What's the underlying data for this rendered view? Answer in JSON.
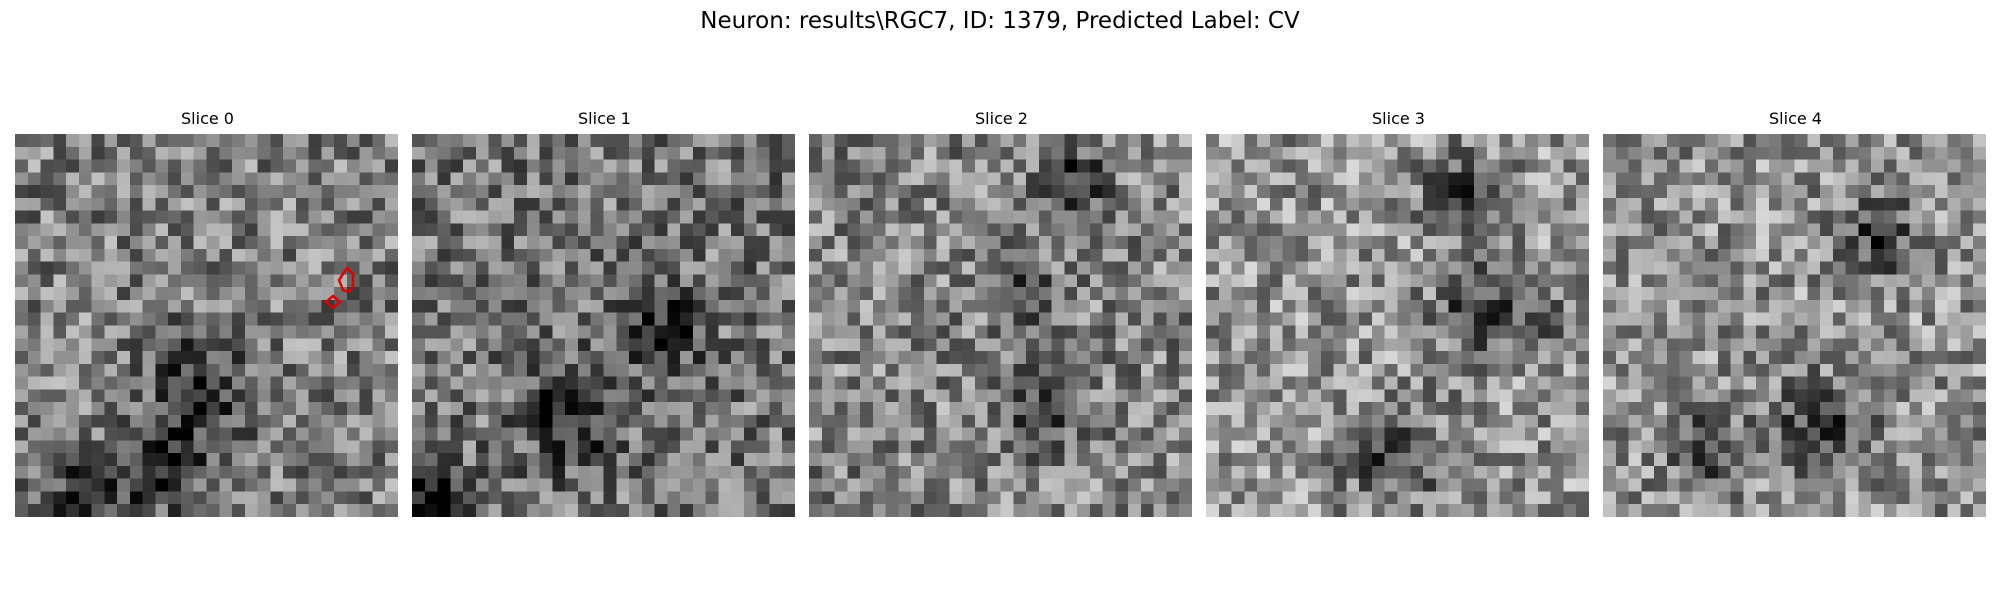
{
  "figure": {
    "title": "Neuron: results\\RGC7, ID: 1379, Predicted Label: CV"
  },
  "slices": [
    {
      "title": "Slice 0",
      "seed": 11,
      "dark_spots": [
        [
          0.47,
          0.65,
          0.14
        ],
        [
          0.38,
          0.85,
          0.1
        ],
        [
          0.18,
          0.92,
          0.12
        ]
      ],
      "bright": 0.5,
      "contour": true
    },
    {
      "title": "Slice 1",
      "seed": 23,
      "dark_spots": [
        [
          0.63,
          0.5,
          0.1
        ],
        [
          0.4,
          0.72,
          0.12
        ],
        [
          0.05,
          0.95,
          0.1
        ]
      ],
      "bright": 0.46,
      "contour": false
    },
    {
      "title": "Slice 2",
      "seed": 37,
      "dark_spots": [
        [
          0.68,
          0.1,
          0.08
        ],
        [
          0.55,
          0.4,
          0.08
        ],
        [
          0.6,
          0.7,
          0.1
        ]
      ],
      "bright": 0.52,
      "contour": false
    },
    {
      "title": "Slice 3",
      "seed": 41,
      "dark_spots": [
        [
          0.65,
          0.15,
          0.1
        ],
        [
          0.7,
          0.45,
          0.12
        ],
        [
          0.48,
          0.82,
          0.12
        ],
        [
          0.88,
          0.48,
          0.06
        ]
      ],
      "bright": 0.58,
      "contour": false
    },
    {
      "title": "Slice 4",
      "seed": 53,
      "dark_spots": [
        [
          0.7,
          0.25,
          0.1
        ],
        [
          0.55,
          0.75,
          0.12
        ],
        [
          0.25,
          0.8,
          0.1
        ]
      ],
      "bright": 0.57,
      "contour": false
    }
  ],
  "colors": {
    "contour": "#e00000"
  }
}
